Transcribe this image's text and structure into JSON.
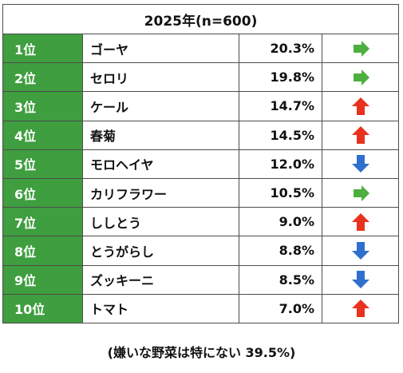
{
  "title": "2025年(n=600)",
  "rows": [
    {
      "rank": "1位",
      "name": "ゴーヤ",
      "pct": "20.3%",
      "trend": "right"
    },
    {
      "rank": "2位",
      "name": "セロリ",
      "pct": "19.8%",
      "trend": "right"
    },
    {
      "rank": "3位",
      "name": "ケール",
      "pct": "14.7%",
      "trend": "up"
    },
    {
      "rank": "4位",
      "name": "春菊",
      "pct": "14.5%",
      "trend": "up"
    },
    {
      "rank": "5位",
      "name": "モロヘイヤ",
      "pct": "12.0%",
      "trend": "down"
    },
    {
      "rank": "6位",
      "name": "カリフラワー",
      "pct": "10.5%",
      "trend": "right"
    },
    {
      "rank": "7位",
      "name": "ししとう",
      "pct": "9.0%",
      "trend": "up"
    },
    {
      "rank": "8位",
      "name": "とうがらし",
      "pct": "8.8%",
      "trend": "down"
    },
    {
      "rank": "9位",
      "name": "ズッキーニ",
      "pct": "8.5%",
      "trend": "down"
    },
    {
      "rank": "10位",
      "name": "トマト",
      "pct": "7.0%",
      "trend": "up"
    }
  ],
  "footer": "(嫌いな野菜は特にない 39.5%)",
  "colors": {
    "rank_bg": "#3f9e3f",
    "trend_right": "#4caf3f",
    "trend_up": "#e8321f",
    "trend_down": "#2f6fcf"
  }
}
